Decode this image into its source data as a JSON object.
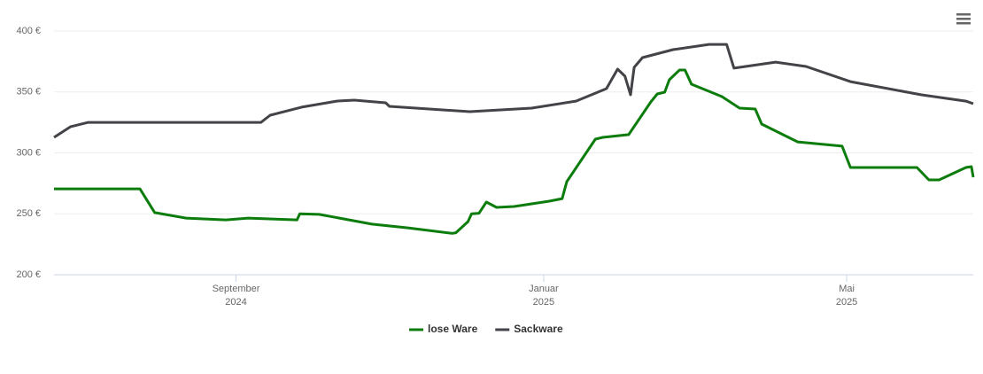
{
  "chart_data": {
    "type": "line",
    "xlim": [
      2024.47,
      2025.465
    ],
    "xticks": [
      {
        "value": 2024.667,
        "label": "September\n2024"
      },
      {
        "value": 2025.0,
        "label": "Januar\n2025"
      },
      {
        "value": 2025.328,
        "label": "Mai\n2025"
      }
    ],
    "ylim": [
      200,
      400
    ],
    "yticks": [
      {
        "value": 200,
        "label": "200 €"
      },
      {
        "value": 250,
        "label": "250 €"
      },
      {
        "value": 300,
        "label": "300 €"
      },
      {
        "value": 350,
        "label": "350 €"
      },
      {
        "value": 400,
        "label": "400 €"
      }
    ],
    "grid": true,
    "legend": "bottom",
    "series": [
      {
        "name": "lose Ware",
        "color": "#0c7d0c",
        "x": [
          2024.47,
          2024.563,
          2024.579,
          2024.613,
          2024.656,
          2024.68,
          2024.733,
          2024.736,
          2024.757,
          2024.814,
          2024.853,
          2024.901,
          2024.905,
          2024.918,
          2024.922,
          2024.93,
          2024.938,
          2024.949,
          2024.968,
          2025.006,
          2025.02,
          2025.025,
          2025.056,
          2025.064,
          2025.092,
          2025.116,
          2025.123,
          2025.131,
          2025.136,
          2025.147,
          2025.153,
          2025.16,
          2025.193,
          2025.212,
          2025.229,
          2025.236,
          2025.275,
          2025.323,
          2025.332,
          2025.404,
          2025.417,
          2025.428,
          2025.457,
          2025.463,
          2025.465
        ],
        "values": [
          270.5,
          270.5,
          251,
          246.5,
          245,
          246.5,
          245,
          250,
          249.5,
          241.5,
          238.5,
          234,
          234.5,
          243.6,
          250,
          250.5,
          259.6,
          255.3,
          256,
          260.4,
          262.5,
          276.4,
          311.3,
          312.7,
          315,
          341.8,
          348.4,
          349.8,
          360,
          368,
          368,
          356.4,
          346.2,
          336.7,
          336,
          323.6,
          309,
          305.5,
          288,
          288,
          277.8,
          277.8,
          288,
          288.7,
          280
        ]
      },
      {
        "name": "Sackware",
        "color": "#434348",
        "x": [
          2024.47,
          2024.488,
          2024.507,
          2024.694,
          2024.704,
          2024.738,
          2024.776,
          2024.795,
          2024.829,
          2024.833,
          2024.92,
          2024.987,
          2025.035,
          2025.068,
          2025.08,
          2025.088,
          2025.094,
          2025.098,
          2025.107,
          2025.14,
          2025.179,
          2025.198,
          2025.206,
          2025.251,
          2025.284,
          2025.332,
          2025.409,
          2025.457,
          2025.465
        ],
        "values": [
          312.7,
          321.5,
          325,
          325,
          330.9,
          337.5,
          342.5,
          343.3,
          341.1,
          338.2,
          333.8,
          336.7,
          342.5,
          352.7,
          368.7,
          362.9,
          347.6,
          370.2,
          378.2,
          384.7,
          389,
          389,
          369.5,
          374.5,
          370.9,
          358.5,
          347.6,
          342.5,
          340.4
        ]
      }
    ]
  }
}
